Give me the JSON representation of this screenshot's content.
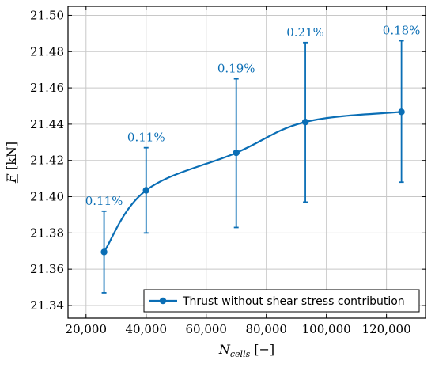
{
  "chart_data": {
    "type": "line",
    "title": "",
    "xlabel": {
      "main": "N",
      "sub": "cells",
      "unit": "[−]"
    },
    "ylabel": {
      "main": "F",
      "unit": "[kN]"
    },
    "xlim": [
      14000,
      133000
    ],
    "ylim": [
      21.333,
      21.505
    ],
    "x_ticks": [
      20000,
      40000,
      60000,
      80000,
      100000,
      120000
    ],
    "x_tick_labels": [
      "20,000",
      "40,000",
      "60,000",
      "80,000",
      "100,000",
      "120,000"
    ],
    "y_ticks": [
      21.34,
      21.36,
      21.38,
      21.4,
      21.42,
      21.44,
      21.46,
      21.48,
      21.5
    ],
    "y_tick_labels": [
      "21.34",
      "21.36",
      "21.38",
      "21.40",
      "21.42",
      "21.44",
      "21.46",
      "21.48",
      "21.50"
    ],
    "grid": true,
    "legend_position": "bottom-right",
    "series": [
      {
        "name": "Thrust without shear stress contribution",
        "color": "#0a6eb5",
        "x": [
          26000,
          40000,
          70000,
          93000,
          125000
        ],
        "y": [
          21.3695,
          21.4035,
          21.4242,
          21.4412,
          21.4468
        ],
        "err_low": [
          21.347,
          21.38,
          21.383,
          21.397,
          21.408
        ],
        "err_high": [
          21.392,
          21.427,
          21.465,
          21.485,
          21.486
        ],
        "annotations": [
          "0.11%",
          "0.11%",
          "0.19%",
          "0.21%",
          "0.18%"
        ]
      }
    ]
  }
}
